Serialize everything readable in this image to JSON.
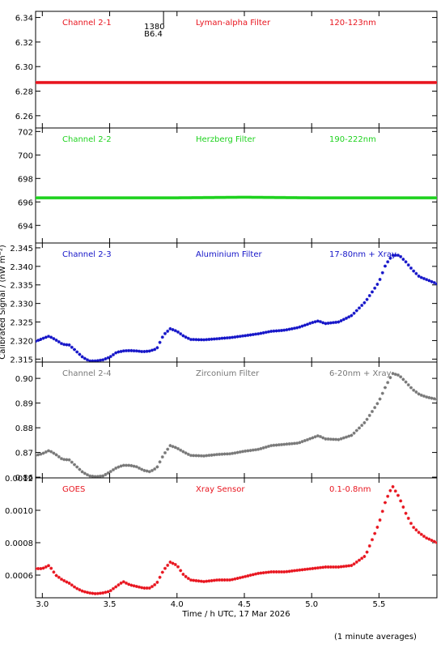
{
  "chart_data": {
    "type": "scatter",
    "xlabel": "Time / h UTC, 17 Mar 2026",
    "ylabel": "Calibrated Signal / (nW m⁻²)",
    "xlim": [
      2.95,
      5.93
    ],
    "xticks": [
      3.0,
      3.5,
      4.0,
      4.5,
      5.0,
      5.5
    ],
    "xtick_labels": [
      "3.0",
      "3.5",
      "4.0",
      "4.5",
      "5.0",
      "5.5"
    ],
    "marker": "asterisk",
    "note": "(1 minute averages)",
    "panels": [
      {
        "id": "ch21",
        "channel": "Channel 2-1",
        "filter": "Lyman-alpha Filter",
        "band": "120-123nm",
        "color": "#e8141e",
        "ylim": [
          6.25,
          6.345
        ],
        "yticks": [
          6.26,
          6.28,
          6.3,
          6.32,
          6.34
        ],
        "ytick_labels": [
          "6.26",
          "6.28",
          "6.30",
          "6.32",
          "6.34"
        ],
        "series": [
          [
            2.95,
            6.287
          ],
          [
            3.5,
            6.287
          ],
          [
            4.0,
            6.287
          ],
          [
            4.5,
            6.287
          ],
          [
            5.0,
            6.287
          ],
          [
            5.5,
            6.287
          ],
          [
            5.93,
            6.287
          ]
        ],
        "marker_label": {
          "x": 3.9,
          "text_top": "1380",
          "text_bottom": "B6.4"
        }
      },
      {
        "id": "ch22",
        "channel": "Channel 2-2",
        "filter": "Herzberg Filter",
        "band": "190-222nm",
        "color": "#1ed21e",
        "ylim": [
          692.5,
          702.3
        ],
        "yticks": [
          694,
          696,
          698,
          700,
          702
        ],
        "ytick_labels": [
          "694",
          "696",
          "698",
          "700",
          "702"
        ],
        "series": [
          [
            2.95,
            696.35
          ],
          [
            3.5,
            696.35
          ],
          [
            4.0,
            696.35
          ],
          [
            4.5,
            696.4
          ],
          [
            5.0,
            696.35
          ],
          [
            5.5,
            696.35
          ],
          [
            5.93,
            696.35
          ]
        ]
      },
      {
        "id": "ch23",
        "channel": "Channel 2-3",
        "filter": "Aluminium Filter",
        "band": "17-80nm + Xray",
        "color": "#1414c8",
        "ylim": [
          2.3142,
          2.3463
        ],
        "yticks": [
          2.315,
          2.32,
          2.325,
          2.33,
          2.335,
          2.34,
          2.345
        ],
        "ytick_labels": [
          "2.315",
          "2.320",
          "2.325",
          "2.330",
          "2.335",
          "2.340",
          "2.345"
        ],
        "series": [
          [
            2.95,
            2.3198
          ],
          [
            3.0,
            2.3205
          ],
          [
            3.05,
            2.3212
          ],
          [
            3.1,
            2.3202
          ],
          [
            3.15,
            2.319
          ],
          [
            3.2,
            2.3188
          ],
          [
            3.25,
            2.3172
          ],
          [
            3.3,
            2.3155
          ],
          [
            3.35,
            2.3145
          ],
          [
            3.4,
            2.3145
          ],
          [
            3.45,
            2.3148
          ],
          [
            3.5,
            2.3155
          ],
          [
            3.55,
            2.3168
          ],
          [
            3.6,
            2.3172
          ],
          [
            3.65,
            2.3173
          ],
          [
            3.7,
            2.3172
          ],
          [
            3.75,
            2.317
          ],
          [
            3.8,
            2.3172
          ],
          [
            3.85,
            2.3178
          ],
          [
            3.9,
            2.3215
          ],
          [
            3.95,
            2.3232
          ],
          [
            4.0,
            2.3225
          ],
          [
            4.05,
            2.3212
          ],
          [
            4.1,
            2.3203
          ],
          [
            4.2,
            2.3202
          ],
          [
            4.3,
            2.3205
          ],
          [
            4.4,
            2.3208
          ],
          [
            4.5,
            2.3213
          ],
          [
            4.6,
            2.3218
          ],
          [
            4.7,
            2.3225
          ],
          [
            4.8,
            2.3228
          ],
          [
            4.9,
            2.3235
          ],
          [
            5.0,
            2.3248
          ],
          [
            5.05,
            2.3253
          ],
          [
            5.1,
            2.3246
          ],
          [
            5.2,
            2.325
          ],
          [
            5.3,
            2.3268
          ],
          [
            5.4,
            2.3305
          ],
          [
            5.5,
            2.3358
          ],
          [
            5.55,
            2.3405
          ],
          [
            5.6,
            2.343
          ],
          [
            5.65,
            2.343
          ],
          [
            5.7,
            2.3412
          ],
          [
            5.75,
            2.339
          ],
          [
            5.8,
            2.3372
          ],
          [
            5.85,
            2.3365
          ],
          [
            5.93,
            2.3353
          ]
        ]
      },
      {
        "id": "ch24",
        "channel": "Channel 2-4",
        "filter": "Zirconium Filter",
        "band": "6-20nm + Xray",
        "color": "#787878",
        "ylim": [
          0.8597,
          0.9066
        ],
        "yticks": [
          0.86,
          0.87,
          0.88,
          0.89,
          0.9
        ],
        "ytick_labels": [
          "0.86",
          "0.87",
          "0.88",
          "0.89",
          "0.90"
        ],
        "series": [
          [
            2.95,
            0.8688
          ],
          [
            3.0,
            0.8695
          ],
          [
            3.05,
            0.8708
          ],
          [
            3.1,
            0.8692
          ],
          [
            3.15,
            0.8672
          ],
          [
            3.2,
            0.867
          ],
          [
            3.25,
            0.8645
          ],
          [
            3.3,
            0.862
          ],
          [
            3.35,
            0.8605
          ],
          [
            3.4,
            0.8602
          ],
          [
            3.45,
            0.8605
          ],
          [
            3.5,
            0.862
          ],
          [
            3.55,
            0.8638
          ],
          [
            3.6,
            0.8648
          ],
          [
            3.65,
            0.8648
          ],
          [
            3.7,
            0.8642
          ],
          [
            3.75,
            0.8628
          ],
          [
            3.8,
            0.8622
          ],
          [
            3.85,
            0.8638
          ],
          [
            3.9,
            0.869
          ],
          [
            3.95,
            0.8728
          ],
          [
            4.0,
            0.8718
          ],
          [
            4.05,
            0.8702
          ],
          [
            4.1,
            0.8688
          ],
          [
            4.2,
            0.8686
          ],
          [
            4.3,
            0.8692
          ],
          [
            4.4,
            0.8695
          ],
          [
            4.5,
            0.8705
          ],
          [
            4.6,
            0.8712
          ],
          [
            4.7,
            0.8728
          ],
          [
            4.8,
            0.8733
          ],
          [
            4.9,
            0.8738
          ],
          [
            5.0,
            0.8758
          ],
          [
            5.05,
            0.8768
          ],
          [
            5.1,
            0.8755
          ],
          [
            5.2,
            0.8752
          ],
          [
            5.3,
            0.877
          ],
          [
            5.4,
            0.8825
          ],
          [
            5.5,
            0.8908
          ],
          [
            5.55,
            0.8968
          ],
          [
            5.6,
            0.902
          ],
          [
            5.65,
            0.9012
          ],
          [
            5.7,
            0.8985
          ],
          [
            5.75,
            0.8955
          ],
          [
            5.8,
            0.8935
          ],
          [
            5.85,
            0.8925
          ],
          [
            5.93,
            0.8915
          ]
        ]
      },
      {
        "id": "goes",
        "channel": "GOES",
        "filter": "Xray Sensor",
        "band": "0.1-0.8nm",
        "color": "#e8141e",
        "ylim": [
          0.00046,
          0.0012
        ],
        "yticks": [
          0.0006,
          0.0008,
          0.001,
          0.0012
        ],
        "ytick_labels": [
          "0.0006",
          "0.0008",
          "0.0010",
          "0.0012"
        ],
        "series": [
          [
            2.95,
            0.00064
          ],
          [
            3.0,
            0.00064
          ],
          [
            3.05,
            0.00066
          ],
          [
            3.1,
            0.0006
          ],
          [
            3.15,
            0.00057
          ],
          [
            3.2,
            0.00055
          ],
          [
            3.25,
            0.00052
          ],
          [
            3.3,
            0.0005
          ],
          [
            3.35,
            0.00049
          ],
          [
            3.4,
            0.000485
          ],
          [
            3.45,
            0.00049
          ],
          [
            3.5,
            0.0005
          ],
          [
            3.55,
            0.00053
          ],
          [
            3.6,
            0.00056
          ],
          [
            3.65,
            0.00054
          ],
          [
            3.7,
            0.00053
          ],
          [
            3.75,
            0.00052
          ],
          [
            3.8,
            0.00052
          ],
          [
            3.85,
            0.00055
          ],
          [
            3.9,
            0.00063
          ],
          [
            3.95,
            0.00068
          ],
          [
            4.0,
            0.00066
          ],
          [
            4.05,
            0.0006
          ],
          [
            4.1,
            0.00057
          ],
          [
            4.2,
            0.00056
          ],
          [
            4.3,
            0.00057
          ],
          [
            4.4,
            0.00057
          ],
          [
            4.5,
            0.00059
          ],
          [
            4.6,
            0.00061
          ],
          [
            4.7,
            0.00062
          ],
          [
            4.8,
            0.00062
          ],
          [
            4.9,
            0.00063
          ],
          [
            5.0,
            0.00064
          ],
          [
            5.1,
            0.00065
          ],
          [
            5.2,
            0.00065
          ],
          [
            5.3,
            0.00066
          ],
          [
            5.4,
            0.00072
          ],
          [
            5.5,
            0.00092
          ],
          [
            5.55,
            0.00106
          ],
          [
            5.6,
            0.00115
          ],
          [
            5.65,
            0.00108
          ],
          [
            5.7,
            0.00098
          ],
          [
            5.75,
            0.0009
          ],
          [
            5.8,
            0.00086
          ],
          [
            5.85,
            0.00083
          ],
          [
            5.93,
            0.0008
          ]
        ]
      }
    ]
  }
}
